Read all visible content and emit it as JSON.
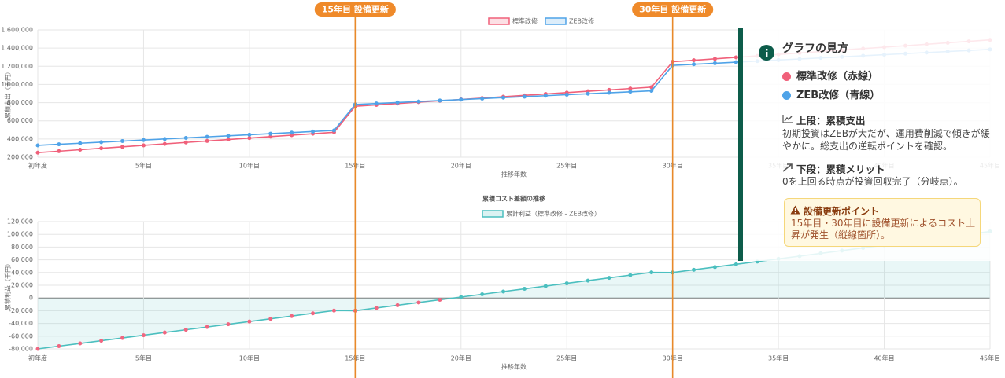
{
  "annotations": [
    {
      "x": 15,
      "label": "15年目 設備更新"
    },
    {
      "x": 30,
      "label": "30年目 設備更新"
    }
  ],
  "chart_data": [
    {
      "type": "line",
      "legend": "top",
      "x_label": "推移年数",
      "y_label": "累積支出（千円）",
      "categories": [
        "初年度",
        null,
        null,
        null,
        null,
        "5年目",
        null,
        null,
        null,
        null,
        "10年目",
        null,
        null,
        null,
        null,
        "15年目",
        null,
        null,
        null,
        null,
        "20年目",
        null,
        null,
        null,
        null,
        "25年目",
        null,
        null,
        null,
        null,
        "30年目",
        null,
        null,
        null,
        null,
        "35年目",
        null,
        null,
        null,
        null,
        "40年目",
        null,
        null,
        null,
        null,
        "45年目"
      ],
      "ylim": [
        200000,
        1600000
      ],
      "yticks": [
        {
          "value": 200000,
          "label": "200,000"
        },
        {
          "value": 400000,
          "label": "400,000"
        },
        {
          "value": 600000,
          "label": "600,000"
        },
        {
          "value": 800000,
          "label": "800,000"
        },
        {
          "value": 1000000,
          "label": "1,000,000"
        },
        {
          "value": 1200000,
          "label": "1,200,000"
        },
        {
          "value": 1400000,
          "label": "1,400,000"
        },
        {
          "value": 1600000,
          "label": "1,600,000"
        }
      ],
      "grid": true,
      "series": [
        {
          "name": "標準改修",
          "color": "#f0607a",
          "values": [
            250000,
            266000,
            282000,
            298000,
            314000,
            330000,
            346000,
            362000,
            378000,
            394000,
            410000,
            426000,
            442000,
            458000,
            474000,
            760000,
            775000,
            790000,
            805000,
            820000,
            835000,
            850000,
            865000,
            880000,
            895000,
            910000,
            925000,
            940000,
            955000,
            970000,
            1250000,
            1266000,
            1282000,
            1298000,
            1314000,
            1330000,
            1346000,
            1362000,
            1378000,
            1394000,
            1410000,
            1426000,
            1442000,
            1458000,
            1474000,
            1490000
          ]
        },
        {
          "name": "ZEB改修",
          "color": "#4fa3e8",
          "values": [
            330000,
            341700,
            353400,
            365100,
            376800,
            388500,
            400200,
            411900,
            423600,
            435300,
            447000,
            458700,
            470400,
            482100,
            493800,
            780000,
            790700,
            801400,
            812100,
            822800,
            833500,
            844200,
            854900,
            865600,
            876300,
            887000,
            897700,
            908400,
            919100,
            929800,
            1210000,
            1221700,
            1233400,
            1245100,
            1256800,
            1268500,
            1280200,
            1291900,
            1303600,
            1315300,
            1327000,
            1338700,
            1350400,
            1362100,
            1373800,
            1385500
          ]
        }
      ]
    },
    {
      "type": "area",
      "title": "累積コスト差額の推移",
      "legend": "top",
      "x_label": "推移年数",
      "y_label": "累積利益（千円）",
      "categories": [
        "初年度",
        null,
        null,
        null,
        null,
        "5年目",
        null,
        null,
        null,
        null,
        "10年目",
        null,
        null,
        null,
        null,
        "15年目",
        null,
        null,
        null,
        null,
        "20年目",
        null,
        null,
        null,
        null,
        "25年目",
        null,
        null,
        null,
        null,
        "30年目",
        null,
        null,
        null,
        null,
        "35年目",
        null,
        null,
        null,
        null,
        "40年目",
        null,
        null,
        null,
        null,
        "45年目"
      ],
      "ylim": [
        -80000,
        120000
      ],
      "yticks": [
        {
          "value": -80000,
          "label": "-80,000"
        },
        {
          "value": -60000,
          "label": "-60,000"
        },
        {
          "value": -40000,
          "label": "-40,000"
        },
        {
          "value": -20000,
          "label": "-20,000"
        },
        0,
        {
          "value": 20000,
          "label": "20,000"
        },
        {
          "value": 40000,
          "label": "40,000"
        },
        {
          "value": 60000,
          "label": "60,000"
        },
        {
          "value": 80000,
          "label": "80,000"
        },
        {
          "value": 100000,
          "label": "100,000"
        },
        {
          "value": 120000,
          "label": "120,000"
        }
      ],
      "grid": true,
      "series": [
        {
          "name": "累計利益（標準改修 - ZEB改修）",
          "color": "#4bbfbf",
          "negative_color": "#f06680",
          "values": [
            -80000,
            -75700,
            -71400,
            -67100,
            -62800,
            -58500,
            -54200,
            -49900,
            -45600,
            -41300,
            -37000,
            -32700,
            -28400,
            -24100,
            -19800,
            -20000,
            -15700,
            -11400,
            -7100,
            -2800,
            1500,
            5800,
            10100,
            14400,
            18700,
            23000,
            27300,
            31600,
            35900,
            40200,
            40000,
            44300,
            48600,
            52900,
            57200,
            61500,
            65800,
            70100,
            74400,
            78700,
            83000,
            87300,
            91600,
            95900,
            100200,
            104500
          ]
        }
      ]
    }
  ],
  "info_panel": {
    "title": "グラフの見方",
    "legend_items": [
      "標準改修（赤線）",
      "ZEB改修（青線）"
    ],
    "sections": [
      {
        "heading": "上段：累積支出",
        "text": "初期投資はZEBが大だが、運用費削減で傾きが緩やかに。総支出の逆転ポイントを確認。"
      },
      {
        "heading": "下段：累積メリット",
        "text": "0を上回る時点が投資回収完了（分岐点）。"
      }
    ],
    "notice": {
      "heading": "設備更新ポイント",
      "text": "15年目・30年目に設備更新によるコスト上昇が発生（縦線箇所）。"
    }
  }
}
